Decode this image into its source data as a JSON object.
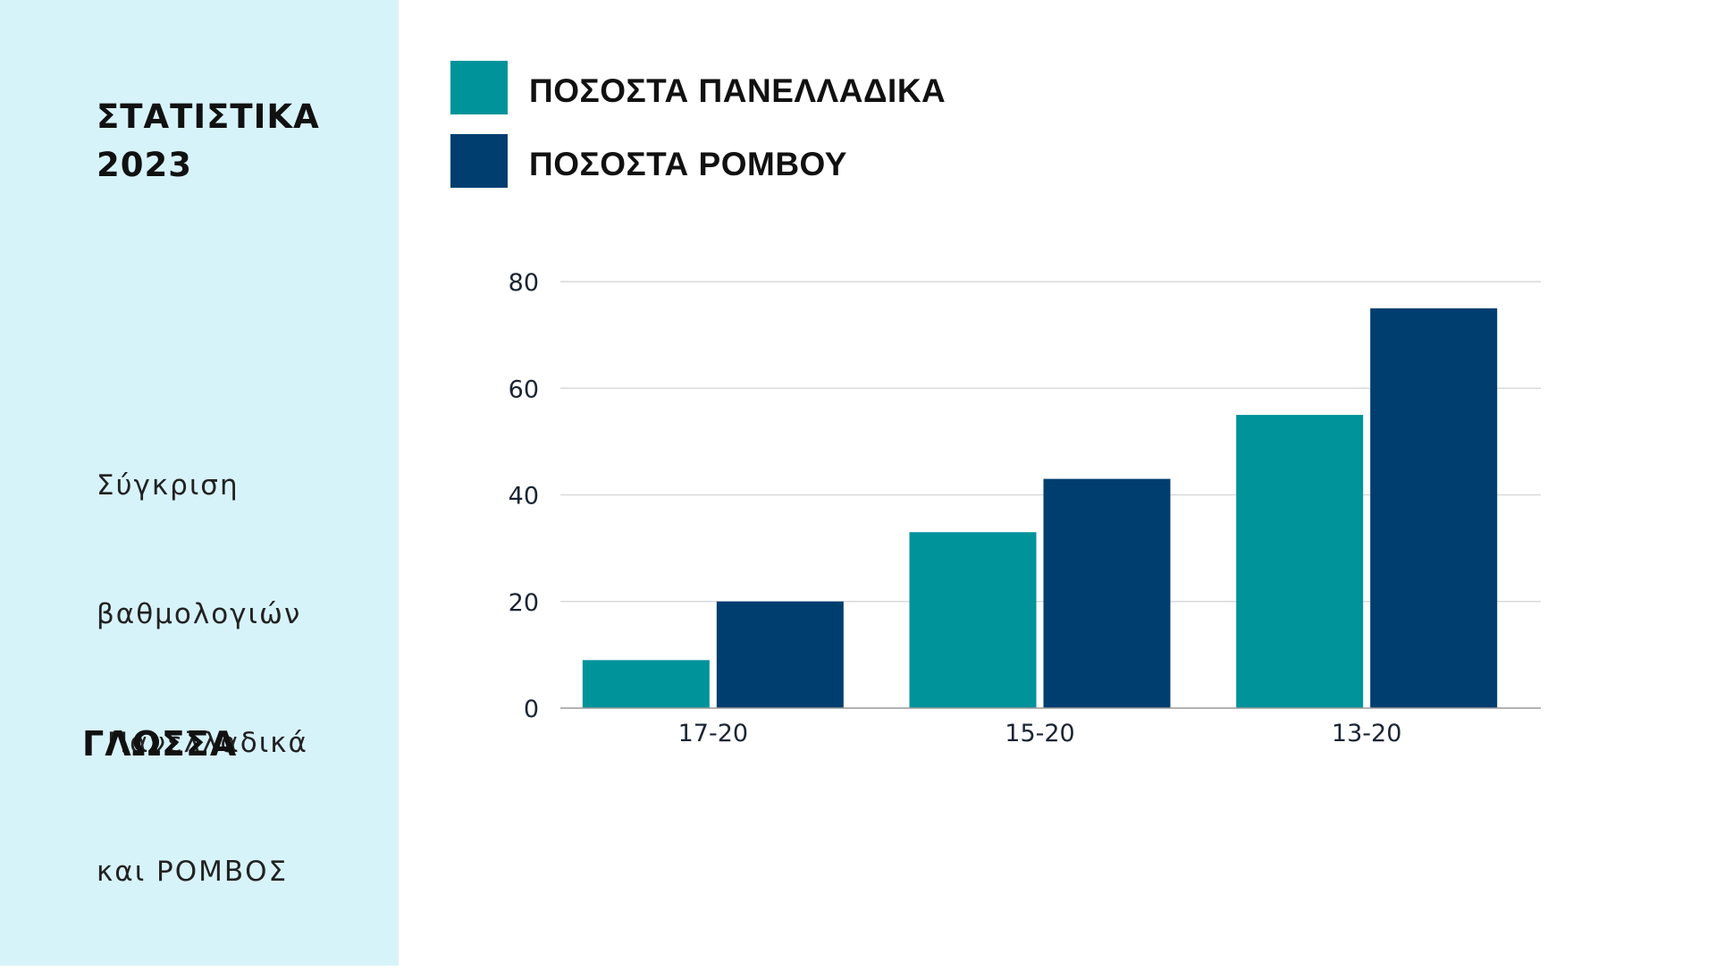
{
  "sidebar": {
    "title_lines": [
      "ΣΤΑΤΙΣΤΙΚΑ",
      "2023"
    ],
    "description_lines": [
      "Σύγκριση",
      "βαθμολογιών",
      " Πανελλαδικά",
      "και ΡΟΜΒΟΣ"
    ],
    "subject": "ΓΛΩΣΣΑ"
  },
  "colors": {
    "sidebar_bg": "#d7f3fa",
    "series_1": "#00939a",
    "series_2": "#003e70",
    "gridline": "#d9d9d9",
    "axis": "#9a9a9a"
  },
  "chart_data": {
    "type": "bar",
    "categories": [
      "17-20",
      "15-20",
      "13-20"
    ],
    "series": [
      {
        "name": "ΠΟΣΟΣΤΑ ΠΑΝΕΛΛΑΔΙΚΑ",
        "values": [
          9,
          33,
          55
        ]
      },
      {
        "name": "ΠΟΣΟΣΤΑ ΡΟΜΒΟΥ",
        "values": [
          20,
          43,
          75
        ]
      }
    ],
    "yticks": [
      0,
      20,
      40,
      60,
      80
    ],
    "ylim": [
      0,
      80
    ],
    "grid": true,
    "legend_position": "top-left"
  }
}
